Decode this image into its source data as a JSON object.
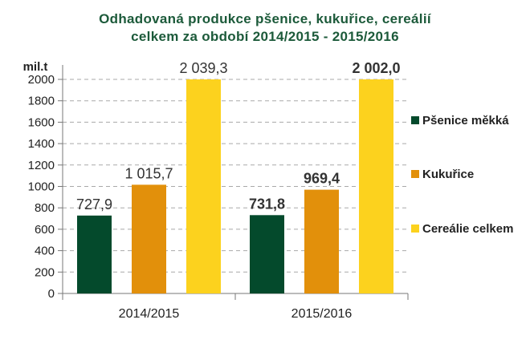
{
  "chart_data": {
    "type": "bar",
    "title_line1": "Odhadovaná produkce  pšenice, kukuřice, cereálií",
    "title_line2": "celkem za období  2014/2015 - 2015/2016",
    "ylabel": "mil.t",
    "ylim": [
      0,
      2000
    ],
    "ytick_step": 200,
    "yticks": [
      "0",
      "200",
      "400",
      "600",
      "800",
      "1000",
      "1200",
      "1400",
      "1600",
      "1800",
      "2000"
    ],
    "grid": true,
    "legend_position": "right",
    "categories": [
      "2014/2015",
      "2015/2016"
    ],
    "series": [
      {
        "name": "Pšenice měkká",
        "color": "#044a2c",
        "values": [
          727.9,
          731.8
        ],
        "labels": [
          "727,9",
          "731,8"
        ]
      },
      {
        "name": "Kukuřice",
        "color": "#e2900b",
        "values": [
          1015.7,
          969.4
        ],
        "labels": [
          "1 015,7",
          "969,4"
        ]
      },
      {
        "name": "Cereálie celkem",
        "color": "#fcd21e",
        "values": [
          2039.3,
          2002.0
        ],
        "labels": [
          "2 039,3",
          "2 002,0"
        ]
      }
    ],
    "bold_labels_category": "2015/2016"
  }
}
